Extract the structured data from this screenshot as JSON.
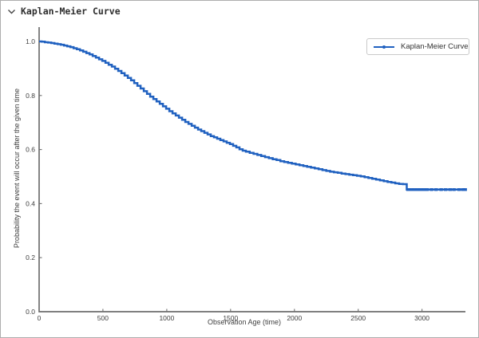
{
  "panel": {
    "title": "Kaplan-Meier Curve",
    "collapse_state": "expanded"
  },
  "chart_data": {
    "type": "line",
    "subtype": "step-after-survival-curve",
    "title": "",
    "xlabel": "Observation Age (time)",
    "ylabel": "Probability the event will occur after the given time",
    "xlim": [
      0,
      3340
    ],
    "ylim": [
      0.0,
      1.0
    ],
    "grid": false,
    "legend_position": "upper-right",
    "axis_color": "#6f6f6f",
    "tick_label_color": "#404040",
    "xticks": [
      {
        "value": 0,
        "label": "0"
      },
      {
        "value": 500,
        "label": "500"
      },
      {
        "value": 1000,
        "label": "1000"
      },
      {
        "value": 1500,
        "label": "1500"
      },
      {
        "value": 2000,
        "label": "2000"
      },
      {
        "value": 2500,
        "label": "2500"
      },
      {
        "value": 3000,
        "label": "3000"
      }
    ],
    "yticks": [
      {
        "value": 0.0,
        "label": "0.0"
      },
      {
        "value": 0.2,
        "label": "0.2"
      },
      {
        "value": 0.4,
        "label": "0.4"
      },
      {
        "value": 0.6,
        "label": "0.6"
      },
      {
        "value": 0.8,
        "label": "0.8"
      },
      {
        "value": 1.0,
        "label": "1.0"
      }
    ],
    "series": [
      {
        "name": "Kaplan-Meier Curve",
        "color": "#2061c0",
        "points": [
          [
            0,
            1.0
          ],
          [
            20,
            0.999
          ],
          [
            45,
            0.997
          ],
          [
            70,
            0.996
          ],
          [
            95,
            0.994
          ],
          [
            120,
            0.992
          ],
          [
            145,
            0.99
          ],
          [
            170,
            0.988
          ],
          [
            195,
            0.985
          ],
          [
            220,
            0.982
          ],
          [
            245,
            0.979
          ],
          [
            270,
            0.975
          ],
          [
            295,
            0.971
          ],
          [
            320,
            0.967
          ],
          [
            345,
            0.962
          ],
          [
            370,
            0.957
          ],
          [
            395,
            0.952
          ],
          [
            420,
            0.946
          ],
          [
            445,
            0.94
          ],
          [
            470,
            0.934
          ],
          [
            495,
            0.928
          ],
          [
            520,
            0.921
          ],
          [
            545,
            0.914
          ],
          [
            570,
            0.907
          ],
          [
            595,
            0.899
          ],
          [
            620,
            0.891
          ],
          [
            645,
            0.883
          ],
          [
            670,
            0.874
          ],
          [
            695,
            0.865
          ],
          [
            720,
            0.856
          ],
          [
            745,
            0.846
          ],
          [
            770,
            0.836
          ],
          [
            795,
            0.826
          ],
          [
            820,
            0.816
          ],
          [
            845,
            0.806
          ],
          [
            870,
            0.796
          ],
          [
            895,
            0.787
          ],
          [
            920,
            0.778
          ],
          [
            945,
            0.769
          ],
          [
            970,
            0.76
          ],
          [
            995,
            0.751
          ],
          [
            1020,
            0.742
          ],
          [
            1045,
            0.734
          ],
          [
            1070,
            0.726
          ],
          [
            1095,
            0.718
          ],
          [
            1120,
            0.71
          ],
          [
            1145,
            0.702
          ],
          [
            1170,
            0.695
          ],
          [
            1195,
            0.688
          ],
          [
            1220,
            0.681
          ],
          [
            1245,
            0.674
          ],
          [
            1270,
            0.668
          ],
          [
            1295,
            0.662
          ],
          [
            1320,
            0.656
          ],
          [
            1345,
            0.65
          ],
          [
            1370,
            0.645
          ],
          [
            1395,
            0.64
          ],
          [
            1420,
            0.635
          ],
          [
            1445,
            0.63
          ],
          [
            1470,
            0.625
          ],
          [
            1495,
            0.62
          ],
          [
            1520,
            0.614
          ],
          [
            1545,
            0.608
          ],
          [
            1570,
            0.601
          ],
          [
            1595,
            0.596
          ],
          [
            1620,
            0.592
          ],
          [
            1650,
            0.588
          ],
          [
            1680,
            0.584
          ],
          [
            1710,
            0.58
          ],
          [
            1740,
            0.576
          ],
          [
            1770,
            0.572
          ],
          [
            1800,
            0.568
          ],
          [
            1830,
            0.564
          ],
          [
            1860,
            0.561
          ],
          [
            1890,
            0.557
          ],
          [
            1920,
            0.554
          ],
          [
            1950,
            0.551
          ],
          [
            1980,
            0.548
          ],
          [
            2010,
            0.545
          ],
          [
            2040,
            0.542
          ],
          [
            2070,
            0.539
          ],
          [
            2100,
            0.536
          ],
          [
            2130,
            0.533
          ],
          [
            2160,
            0.53
          ],
          [
            2190,
            0.527
          ],
          [
            2220,
            0.524
          ],
          [
            2250,
            0.521
          ],
          [
            2280,
            0.518
          ],
          [
            2310,
            0.516
          ],
          [
            2340,
            0.514
          ],
          [
            2370,
            0.511
          ],
          [
            2400,
            0.509
          ],
          [
            2430,
            0.507
          ],
          [
            2460,
            0.505
          ],
          [
            2490,
            0.503
          ],
          [
            2520,
            0.501
          ],
          [
            2550,
            0.498
          ],
          [
            2580,
            0.495
          ],
          [
            2610,
            0.492
          ],
          [
            2640,
            0.489
          ],
          [
            2670,
            0.486
          ],
          [
            2700,
            0.483
          ],
          [
            2730,
            0.48
          ],
          [
            2760,
            0.478
          ],
          [
            2790,
            0.475
          ],
          [
            2820,
            0.473
          ],
          [
            2850,
            0.472
          ],
          [
            2880,
            0.452
          ],
          [
            3340,
            0.452
          ]
        ],
        "censor_marks": [
          2890,
          2915,
          2940,
          2965,
          2990,
          3015,
          3040,
          3075,
          3110,
          3150,
          3185,
          3220,
          3250,
          3290,
          3320,
          3338
        ]
      }
    ]
  }
}
